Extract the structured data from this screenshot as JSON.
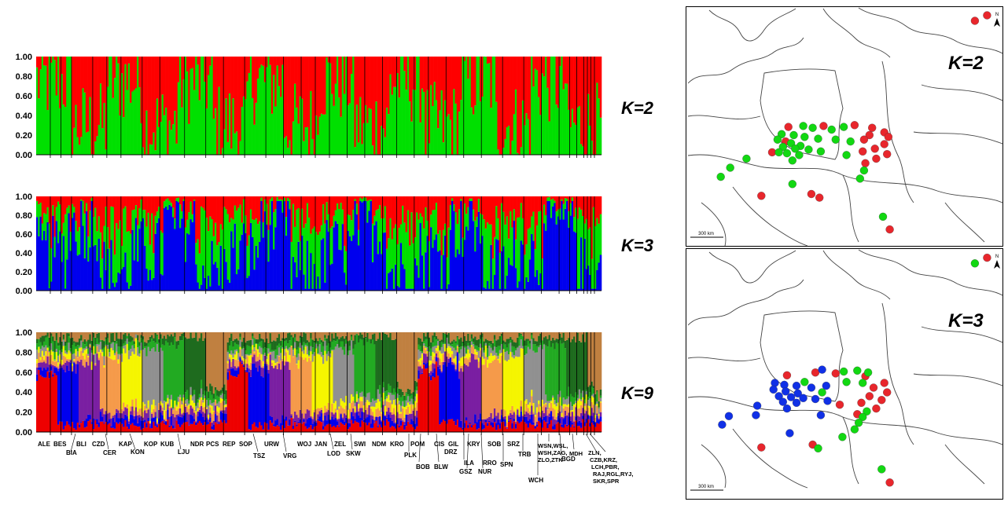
{
  "chart_data": [
    {
      "type": "bar",
      "subtype": "stacked-admixture",
      "label": "K=2",
      "y_ticks": [
        "1.00",
        "0.80",
        "0.60",
        "0.40",
        "0.20",
        "0.00"
      ],
      "ylim": [
        0,
        1
      ],
      "colors": [
        "#00e000",
        "#ff0000"
      ],
      "samples_approx": 320
    },
    {
      "type": "bar",
      "subtype": "stacked-admixture",
      "label": "K=3",
      "y_ticks": [
        "1.00",
        "0.80",
        "0.60",
        "0.40",
        "0.20",
        "0.00"
      ],
      "ylim": [
        0,
        1
      ],
      "colors": [
        "#0000ee",
        "#00e000",
        "#ff0000"
      ],
      "samples_approx": 320
    },
    {
      "type": "bar",
      "subtype": "stacked-admixture",
      "label": "K=9",
      "y_ticks": [
        "1.00",
        "0.80",
        "0.60",
        "0.40",
        "0.20",
        "0.00"
      ],
      "ylim": [
        0,
        1
      ],
      "colors": [
        "#ee0000",
        "#0000ee",
        "#7a1fa2",
        "#f59a4a",
        "#f5f500",
        "#909090",
        "#22aa22",
        "#1e6b1e",
        "#c08040"
      ],
      "samples_approx": 320
    }
  ],
  "population_labels": {
    "row1": [
      "ALE",
      "BES",
      "BLI",
      "CZD",
      "KAP",
      "KOP",
      "KUB",
      "NDR",
      "PCS",
      "REP",
      "SOP",
      "URW",
      "WOJ",
      "JAN",
      "ZEL",
      "SWI",
      "NDM",
      "KRO",
      "POM",
      "CIS",
      "GIL",
      "KRY",
      "SOB",
      "SRZ"
    ],
    "row2": [
      "BIA",
      "CER",
      "KON",
      "LJU",
      "TSZ",
      "VRG",
      "LOD",
      "SKW",
      "PLK",
      "DRZ",
      "ILA",
      "RRO",
      "SPN",
      "TRB"
    ],
    "row3": [
      "BOB",
      "BLW",
      "GSZ",
      "NUR",
      "BGD"
    ],
    "group_wch_lines": [
      "WSN,WSL,",
      "WSH,ZAG,",
      "ZLO,ZTK"
    ],
    "wch": "WCH",
    "mdh": "MDH",
    "group_end_lines": [
      "ZLN,",
      "CZB,KRZ,",
      "LCH,PBR,",
      "RAJ,RGL,RYJ,",
      "SKR,SPR"
    ]
  },
  "maps": [
    {
      "label": "K=2",
      "scale": "300 km",
      "north": "N",
      "points": [
        {
          "lon": 30.8,
          "lat": 66.0,
          "cluster": 1
        },
        {
          "lon": 29.9,
          "lat": 65.4,
          "cluster": 1
        },
        {
          "lon": 16.1,
          "lat": 53.7,
          "cluster": 1
        },
        {
          "lon": 18.7,
          "lat": 53.8,
          "cluster": 1
        },
        {
          "lon": 21.0,
          "lat": 53.9,
          "cluster": 1
        },
        {
          "lon": 22.3,
          "lat": 53.6,
          "cluster": 1
        },
        {
          "lon": 23.2,
          "lat": 53.1,
          "cluster": 1
        },
        {
          "lon": 22.1,
          "lat": 52.8,
          "cluster": 1
        },
        {
          "lon": 23.5,
          "lat": 52.6,
          "cluster": 1
        },
        {
          "lon": 21.7,
          "lat": 52.3,
          "cluster": 1
        },
        {
          "lon": 23.2,
          "lat": 51.8,
          "cluster": 1
        },
        {
          "lon": 22.5,
          "lat": 51.3,
          "cluster": 1
        },
        {
          "lon": 21.6,
          "lat": 51.0,
          "cluster": 1
        },
        {
          "lon": 23.4,
          "lat": 50.7,
          "cluster": 1
        },
        {
          "lon": 22.6,
          "lat": 50.2,
          "cluster": 1
        },
        {
          "lon": 21.8,
          "lat": 49.7,
          "cluster": 1
        },
        {
          "lon": 15.9,
          "lat": 52.1,
          "cluster": 1
        },
        {
          "lon": 14.9,
          "lat": 50.9,
          "cluster": 1
        },
        {
          "lon": 14.1,
          "lat": 46.1,
          "cluster": 1
        },
        {
          "lon": 17.8,
          "lat": 46.3,
          "cluster": 1
        },
        {
          "lon": 18.4,
          "lat": 45.9,
          "cluster": 1
        },
        {
          "lon": 23.6,
          "lat": 42.4,
          "cluster": 1
        },
        {
          "lon": 17.2,
          "lat": 53.8,
          "cluster": 0
        },
        {
          "lon": 17.9,
          "lat": 53.6,
          "cluster": 0
        },
        {
          "lon": 19.3,
          "lat": 53.4,
          "cluster": 0
        },
        {
          "lon": 20.2,
          "lat": 53.7,
          "cluster": 0
        },
        {
          "lon": 15.6,
          "lat": 52.9,
          "cluster": 0
        },
        {
          "lon": 16.5,
          "lat": 52.8,
          "cluster": 0
        },
        {
          "lon": 17.3,
          "lat": 52.6,
          "cluster": 0
        },
        {
          "lon": 18.3,
          "lat": 52.4,
          "cluster": 0
        },
        {
          "lon": 19.6,
          "lat": 52.3,
          "cluster": 0
        },
        {
          "lon": 20.7,
          "lat": 52.1,
          "cluster": 0
        },
        {
          "lon": 15.3,
          "lat": 52.3,
          "cluster": 0
        },
        {
          "lon": 16.3,
          "lat": 51.9,
          "cluster": 0
        },
        {
          "lon": 17.0,
          "lat": 51.6,
          "cluster": 0
        },
        {
          "lon": 15.7,
          "lat": 51.5,
          "cluster": 0
        },
        {
          "lon": 16.6,
          "lat": 51.3,
          "cluster": 0
        },
        {
          "lon": 17.6,
          "lat": 51.2,
          "cluster": 0
        },
        {
          "lon": 18.5,
          "lat": 51.0,
          "cluster": 0
        },
        {
          "lon": 16.0,
          "lat": 50.8,
          "cluster": 0
        },
        {
          "lon": 16.9,
          "lat": 50.6,
          "cluster": 0
        },
        {
          "lon": 15.4,
          "lat": 50.9,
          "cluster": 0
        },
        {
          "lon": 20.4,
          "lat": 50.6,
          "cluster": 0
        },
        {
          "lon": 13.0,
          "lat": 50.2,
          "cluster": 0
        },
        {
          "lon": 16.4,
          "lat": 50.0,
          "cluster": 0
        },
        {
          "lon": 11.8,
          "lat": 49.2,
          "cluster": 0
        },
        {
          "lon": 21.7,
          "lat": 48.9,
          "cluster": 0
        },
        {
          "lon": 21.4,
          "lat": 48.0,
          "cluster": 0
        },
        {
          "lon": 11.1,
          "lat": 48.2,
          "cluster": 0
        },
        {
          "lon": 16.4,
          "lat": 47.4,
          "cluster": 0
        },
        {
          "lon": 23.1,
          "lat": 43.8,
          "cluster": 0
        }
      ]
    },
    {
      "label": "K=3",
      "scale": "300 km",
      "north": "N",
      "points": [
        {
          "lon": 30.8,
          "lat": 66.0,
          "cluster": 2
        },
        {
          "lon": 29.9,
          "lat": 65.4,
          "cluster": 1
        },
        {
          "lon": 16.0,
          "lat": 53.6,
          "cluster": 2
        },
        {
          "lon": 18.1,
          "lat": 53.9,
          "cluster": 2
        },
        {
          "lon": 19.6,
          "lat": 53.8,
          "cluster": 2
        },
        {
          "lon": 21.8,
          "lat": 53.5,
          "cluster": 2
        },
        {
          "lon": 23.2,
          "lat": 52.8,
          "cluster": 2
        },
        {
          "lon": 22.4,
          "lat": 52.3,
          "cluster": 2
        },
        {
          "lon": 23.4,
          "lat": 51.8,
          "cluster": 2
        },
        {
          "lon": 22.1,
          "lat": 51.4,
          "cluster": 2
        },
        {
          "lon": 23.0,
          "lat": 51.0,
          "cluster": 2
        },
        {
          "lon": 21.5,
          "lat": 50.7,
          "cluster": 2
        },
        {
          "lon": 22.6,
          "lat": 50.1,
          "cluster": 2
        },
        {
          "lon": 21.2,
          "lat": 49.5,
          "cluster": 2
        },
        {
          "lon": 19.9,
          "lat": 50.5,
          "cluster": 2
        },
        {
          "lon": 14.1,
          "lat": 46.0,
          "cluster": 2
        },
        {
          "lon": 17.9,
          "lat": 46.3,
          "cluster": 2
        },
        {
          "lon": 23.6,
          "lat": 42.3,
          "cluster": 2
        },
        {
          "lon": 18.6,
          "lat": 54.2,
          "cluster": 0
        },
        {
          "lon": 15.1,
          "lat": 52.8,
          "cluster": 0
        },
        {
          "lon": 15.8,
          "lat": 52.6,
          "cluster": 0
        },
        {
          "lon": 16.7,
          "lat": 52.5,
          "cluster": 0
        },
        {
          "lon": 17.8,
          "lat": 52.3,
          "cluster": 0
        },
        {
          "lon": 18.9,
          "lat": 52.5,
          "cluster": 0
        },
        {
          "lon": 15.0,
          "lat": 52.1,
          "cluster": 0
        },
        {
          "lon": 15.9,
          "lat": 51.9,
          "cluster": 0
        },
        {
          "lon": 16.8,
          "lat": 51.7,
          "cluster": 0
        },
        {
          "lon": 15.4,
          "lat": 51.4,
          "cluster": 0
        },
        {
          "lon": 16.3,
          "lat": 51.3,
          "cluster": 0
        },
        {
          "lon": 17.2,
          "lat": 51.2,
          "cluster": 0
        },
        {
          "lon": 18.1,
          "lat": 51.1,
          "cluster": 0
        },
        {
          "lon": 19.0,
          "lat": 50.9,
          "cluster": 0
        },
        {
          "lon": 15.7,
          "lat": 50.8,
          "cluster": 0
        },
        {
          "lon": 16.7,
          "lat": 50.7,
          "cluster": 0
        },
        {
          "lon": 13.8,
          "lat": 50.4,
          "cluster": 0
        },
        {
          "lon": 16.0,
          "lat": 50.1,
          "cluster": 0
        },
        {
          "lon": 11.7,
          "lat": 49.3,
          "cluster": 0
        },
        {
          "lon": 13.7,
          "lat": 49.4,
          "cluster": 0
        },
        {
          "lon": 18.5,
          "lat": 49.4,
          "cluster": 0
        },
        {
          "lon": 11.2,
          "lat": 48.4,
          "cluster": 0
        },
        {
          "lon": 16.2,
          "lat": 47.5,
          "cluster": 0
        },
        {
          "lon": 20.2,
          "lat": 54.0,
          "cluster": 1
        },
        {
          "lon": 21.2,
          "lat": 54.1,
          "cluster": 1
        },
        {
          "lon": 22.0,
          "lat": 53.9,
          "cluster": 1
        },
        {
          "lon": 20.4,
          "lat": 52.9,
          "cluster": 1
        },
        {
          "lon": 21.6,
          "lat": 52.8,
          "cluster": 1
        },
        {
          "lon": 17.3,
          "lat": 52.9,
          "cluster": 1
        },
        {
          "lon": 18.6,
          "lat": 51.8,
          "cluster": 1
        },
        {
          "lon": 21.9,
          "lat": 49.8,
          "cluster": 1
        },
        {
          "lon": 21.6,
          "lat": 49.2,
          "cluster": 1
        },
        {
          "lon": 21.3,
          "lat": 48.6,
          "cluster": 1
        },
        {
          "lon": 21.0,
          "lat": 47.9,
          "cluster": 1
        },
        {
          "lon": 18.3,
          "lat": 45.9,
          "cluster": 1
        },
        {
          "lon": 20.1,
          "lat": 47.1,
          "cluster": 1
        },
        {
          "lon": 23.0,
          "lat": 43.7,
          "cluster": 1
        }
      ]
    }
  ],
  "colors": {
    "red": "#e8262c",
    "green": "#12d812",
    "blue": "#1030e6"
  }
}
